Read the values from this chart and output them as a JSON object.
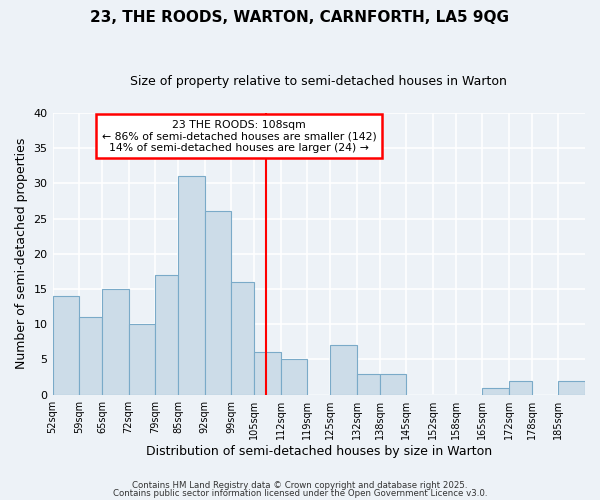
{
  "title": "23, THE ROODS, WARTON, CARNFORTH, LA5 9QG",
  "subtitle": "Size of property relative to semi-detached houses in Warton",
  "xlabel": "Distribution of semi-detached houses by size in Warton",
  "ylabel": "Number of semi-detached properties",
  "bin_edges": [
    52,
    59,
    65,
    72,
    79,
    85,
    92,
    99,
    105,
    112,
    119,
    125,
    132,
    138,
    145,
    152,
    158,
    165,
    172,
    178,
    185,
    192
  ],
  "counts": [
    14,
    11,
    15,
    10,
    17,
    31,
    26,
    16,
    6,
    5,
    0,
    7,
    3,
    3,
    0,
    0,
    0,
    1,
    2,
    0,
    2
  ],
  "bar_color": "#ccdce8",
  "bar_edge_color": "#7aaac8",
  "reference_line_x": 108,
  "reference_line_color": "red",
  "annotation_line1": "23 THE ROODS: 108sqm",
  "annotation_line2": "← 86% of semi-detached houses are smaller (142)",
  "annotation_line3": "14% of semi-detached houses are larger (24) →",
  "annotation_box_color": "white",
  "annotation_box_edge_color": "red",
  "ylim": [
    0,
    40
  ],
  "yticks": [
    0,
    5,
    10,
    15,
    20,
    25,
    30,
    35,
    40
  ],
  "tick_labels": [
    "52sqm",
    "59sqm",
    "65sqm",
    "72sqm",
    "79sqm",
    "85sqm",
    "92sqm",
    "99sqm",
    "105sqm",
    "112sqm",
    "119sqm",
    "125sqm",
    "132sqm",
    "138sqm",
    "145sqm",
    "152sqm",
    "158sqm",
    "165sqm",
    "172sqm",
    "178sqm",
    "185sqm"
  ],
  "footnote1": "Contains HM Land Registry data © Crown copyright and database right 2025.",
  "footnote2": "Contains public sector information licensed under the Open Government Licence v3.0.",
  "background_color": "#edf2f7",
  "grid_color": "#ffffff",
  "title_fontsize": 11,
  "subtitle_fontsize": 9
}
